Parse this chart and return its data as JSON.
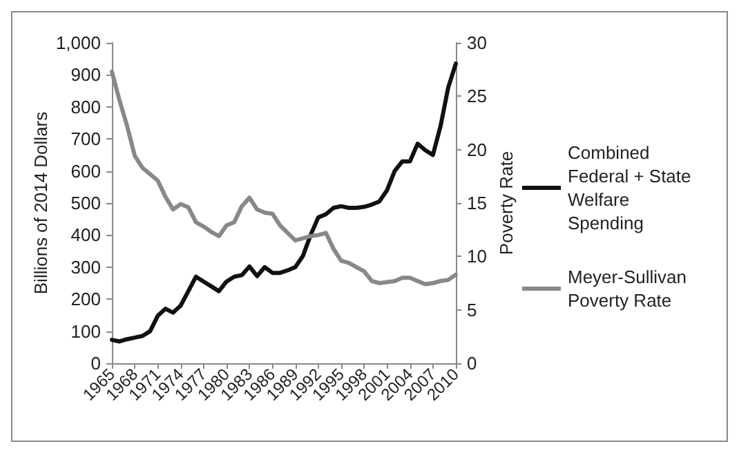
{
  "chart_data": {
    "type": "line",
    "ylabel": "Billions of 2014 Dollars",
    "y2label": "Poverty Rate",
    "categories": [
      "1965",
      null,
      null,
      "1968",
      null,
      null,
      "1971",
      null,
      null,
      "1974",
      null,
      null,
      "1977",
      null,
      null,
      "1980",
      null,
      null,
      "1983",
      null,
      null,
      "1986",
      null,
      null,
      "1989",
      null,
      null,
      "1992",
      null,
      null,
      "1995",
      null,
      null,
      "1998",
      null,
      null,
      "2001",
      null,
      null,
      "2004",
      null,
      null,
      "2007",
      null,
      null,
      "2010"
    ],
    "series": [
      {
        "name": "Combined Federal + State Welfare Spending",
        "color": "#111111",
        "values": [
          73,
          68,
          75,
          80,
          85,
          100,
          148,
          170,
          158,
          180,
          225,
          270,
          255,
          240,
          225,
          255,
          270,
          275,
          302,
          272,
          300,
          282,
          282,
          290,
          300,
          335,
          400,
          455,
          465,
          485,
          490,
          485,
          485,
          488,
          495,
          505,
          540,
          600,
          630,
          630,
          685,
          665,
          650,
          740,
          860,
          935
        ]
      },
      {
        "name": "Meyer-Sullivan Poverty Rate",
        "color": "#888888",
        "axis": "y2",
        "values": [
          27.3,
          24.6,
          22.2,
          19.4,
          18.3,
          17.7,
          17.1,
          15.6,
          14.4,
          14.9,
          14.6,
          13.2,
          12.8,
          12.3,
          11.9,
          12.9,
          13.2,
          14.7,
          15.5,
          14.4,
          14.1,
          14.0,
          12.9,
          12.2,
          11.5,
          11.7,
          11.9,
          12.0,
          12.2,
          10.7,
          9.6,
          9.4,
          9.0,
          8.6,
          7.7,
          7.5,
          7.6,
          7.7,
          8.0,
          8.0,
          7.7,
          7.4,
          7.5,
          7.7,
          7.8,
          8.3
        ]
      }
    ],
    "ylim": [
      0,
      1000
    ],
    "yticks": [
      {
        "value": 0,
        "label": "0"
      },
      {
        "value": 100,
        "label": "100"
      },
      {
        "value": 200,
        "label": "200"
      },
      {
        "value": 300,
        "label": "300"
      },
      {
        "value": 400,
        "label": "400"
      },
      {
        "value": 500,
        "label": "500"
      },
      {
        "value": 600,
        "label": "600"
      },
      {
        "value": 700,
        "label": "700"
      },
      {
        "value": 800,
        "label": "800"
      },
      {
        "value": 900,
        "label": "900"
      },
      {
        "value": 1000,
        "label": "1,000"
      }
    ],
    "y2lim": [
      0,
      30
    ],
    "y2ticks": [
      0,
      5,
      10,
      15,
      20,
      25,
      30
    ],
    "grid": false,
    "legend": "right",
    "marker": "none",
    "line_style": "solid"
  }
}
